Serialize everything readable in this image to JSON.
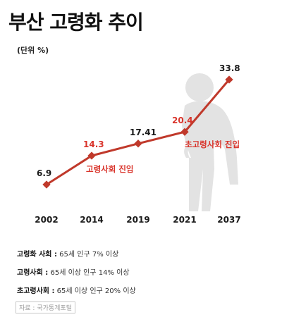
{
  "title": "부산 고령화 추이",
  "unit": "(단위 %)",
  "chart_data": {
    "type": "line",
    "categories": [
      "2002",
      "2014",
      "2019",
      "2021",
      "2037"
    ],
    "values": [
      6.9,
      14.3,
      17.41,
      20.4,
      33.8
    ],
    "value_labels": [
      "6.9",
      "14.3",
      "17.41",
      "20.4",
      "33.8"
    ],
    "highlighted_labels": [
      "14.3",
      "20.4"
    ],
    "annotations": [
      "고령사회 진입",
      "초고령사회 진입"
    ],
    "title": "부산 고령화 추이",
    "ylabel": "(단위 %)",
    "xlabel": "",
    "line_color": "#c0392b",
    "highlight_color": "#d9342b",
    "ylim": [
      0,
      35
    ],
    "grid": false,
    "legend": "none"
  },
  "definitions": [
    {
      "term": "고령화 사회 :",
      "desc": "65세 인구 7% 이상"
    },
    {
      "term": "고령사회 :",
      "desc": "65세 이상 인구 14% 이상"
    },
    {
      "term": "초고령사회 :",
      "desc": "65세 이상 인구 20% 이상"
    }
  ],
  "source": "자료 : 국가통계포털",
  "icons": {
    "background": "elderly-person-with-cane-icon"
  },
  "colors": {
    "line": "#c0392b",
    "highlight": "#d9342b",
    "silhouette": "#e3e3e3"
  }
}
